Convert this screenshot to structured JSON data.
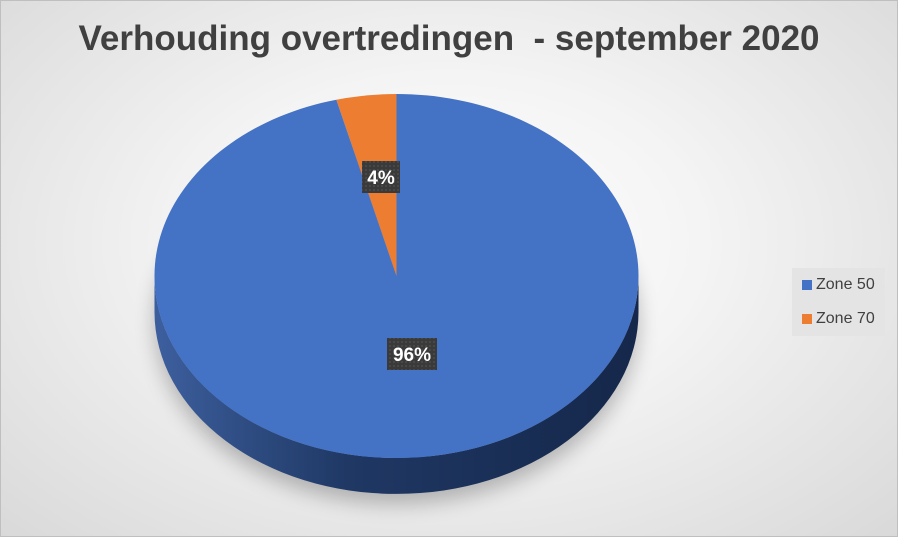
{
  "chart_data": {
    "type": "pie",
    "style": "3d",
    "title": "Verhouding overtredingen  - september 2020",
    "categories": [
      "Zone 50",
      "Zone 70"
    ],
    "values": [
      96,
      4
    ],
    "data_labels": [
      "96%",
      "4%"
    ],
    "colors": [
      "#4472c4",
      "#ed7d31"
    ],
    "side_colors": [
      "#1f3864",
      "#9c4f1c"
    ],
    "legend_position": "right"
  }
}
